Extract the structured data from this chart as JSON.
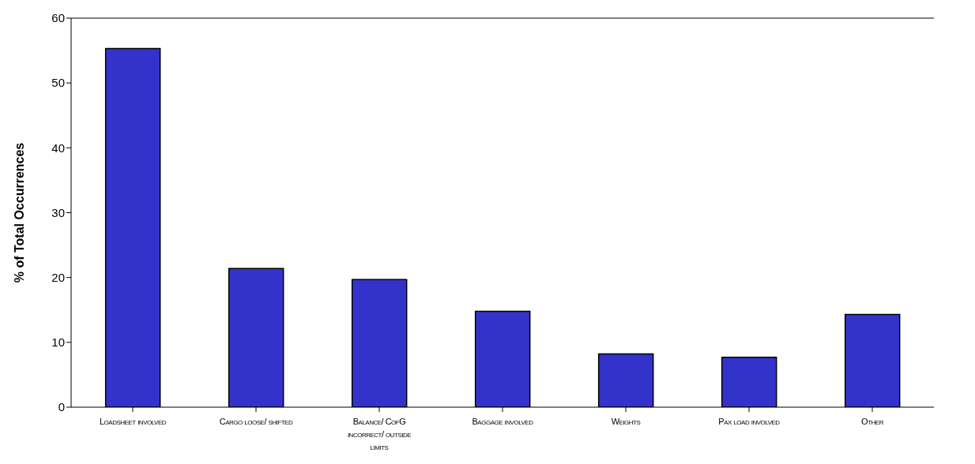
{
  "chart_data": {
    "type": "bar",
    "ylabel": "% of Total Occurrences",
    "categories": [
      "Loadsheet involved",
      "Cargo loose/ shifted",
      "Balance/ CofG incorrect/ outside limits",
      "Baggage involved",
      "Weights",
      "Pax load involved",
      "Other"
    ],
    "values": [
      55.3,
      21.4,
      19.7,
      14.8,
      8.2,
      7.7,
      14.3
    ],
    "color": "#3333cc",
    "ylim": [
      0,
      60
    ],
    "yticks": [
      0,
      10,
      20,
      30,
      40,
      50,
      60
    ],
    "grid": false
  }
}
